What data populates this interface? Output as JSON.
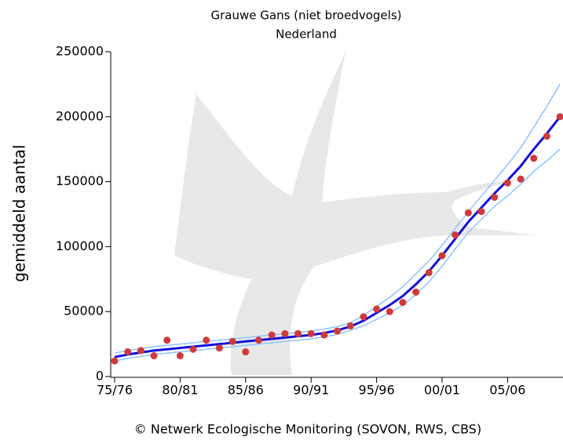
{
  "chart_data": {
    "type": "line",
    "title": "Grauwe Gans (niet broedvogels)",
    "subtitle": "Nederland",
    "y_label": "gemiddeld aantal",
    "footer": "© Netwerk Ecologische Monitoring (SOVON, RWS, CBS)",
    "categories": [
      "75/76",
      null,
      null,
      null,
      null,
      "80/81",
      null,
      null,
      null,
      null,
      "85/86",
      null,
      null,
      null,
      null,
      "90/91",
      null,
      null,
      null,
      null,
      "95/96",
      null,
      null,
      null,
      null,
      "00/01",
      null,
      null,
      null,
      null,
      "05/06",
      null,
      null,
      null,
      null
    ],
    "ylim": [
      0,
      250000
    ],
    "yticks": [
      0,
      50000,
      100000,
      150000,
      200000,
      250000
    ],
    "series": [
      {
        "kind": "line",
        "color": "#8cc4ff",
        "width": 1.5,
        "values": [
          18000,
          20000,
          21500,
          23000,
          24000,
          25000,
          26000,
          27000,
          28000,
          29000,
          30000,
          31000,
          32000,
          33000,
          34000,
          35000,
          36500,
          38500,
          41500,
          47000,
          54000,
          61000,
          69000,
          79000,
          89000,
          101000,
          114000,
          127000,
          139000,
          151000,
          163000,
          176000,
          192000,
          208000,
          225000
        ]
      },
      {
        "kind": "line",
        "color": "#8cc4ff",
        "width": 1.5,
        "values": [
          12000,
          14000,
          15500,
          17000,
          18000,
          19000,
          20000,
          21000,
          22000,
          23000,
          24000,
          25000,
          26000,
          27000,
          28000,
          29000,
          30500,
          32500,
          35500,
          39000,
          44000,
          49000,
          55000,
          63000,
          73000,
          85000,
          98000,
          111000,
          121000,
          131000,
          139000,
          148000,
          158000,
          166000,
          175000
        ]
      },
      {
        "kind": "line",
        "color": "#1010e0",
        "width": 3,
        "values": [
          15000,
          17000,
          18500,
          20000,
          21000,
          22000,
          23000,
          24000,
          25000,
          26000,
          27000,
          28000,
          29000,
          30000,
          31000,
          32000,
          33500,
          35500,
          38500,
          43000,
          49000,
          55000,
          62000,
          71000,
          81000,
          93000,
          106000,
          119000,
          130000,
          141000,
          151000,
          162000,
          175000,
          187000,
          200000
        ]
      },
      {
        "kind": "points",
        "color": "#d03a3a",
        "values": [
          12000,
          19000,
          20000,
          16000,
          28000,
          16000,
          21000,
          28000,
          22000,
          27000,
          19000,
          28000,
          32000,
          33000,
          33000,
          33000,
          32000,
          35000,
          39000,
          46000,
          52000,
          50000,
          57000,
          65000,
          80000,
          93000,
          109000,
          126000,
          127000,
          138000,
          149000,
          152000,
          168000,
          185000,
          200000
        ]
      }
    ]
  }
}
